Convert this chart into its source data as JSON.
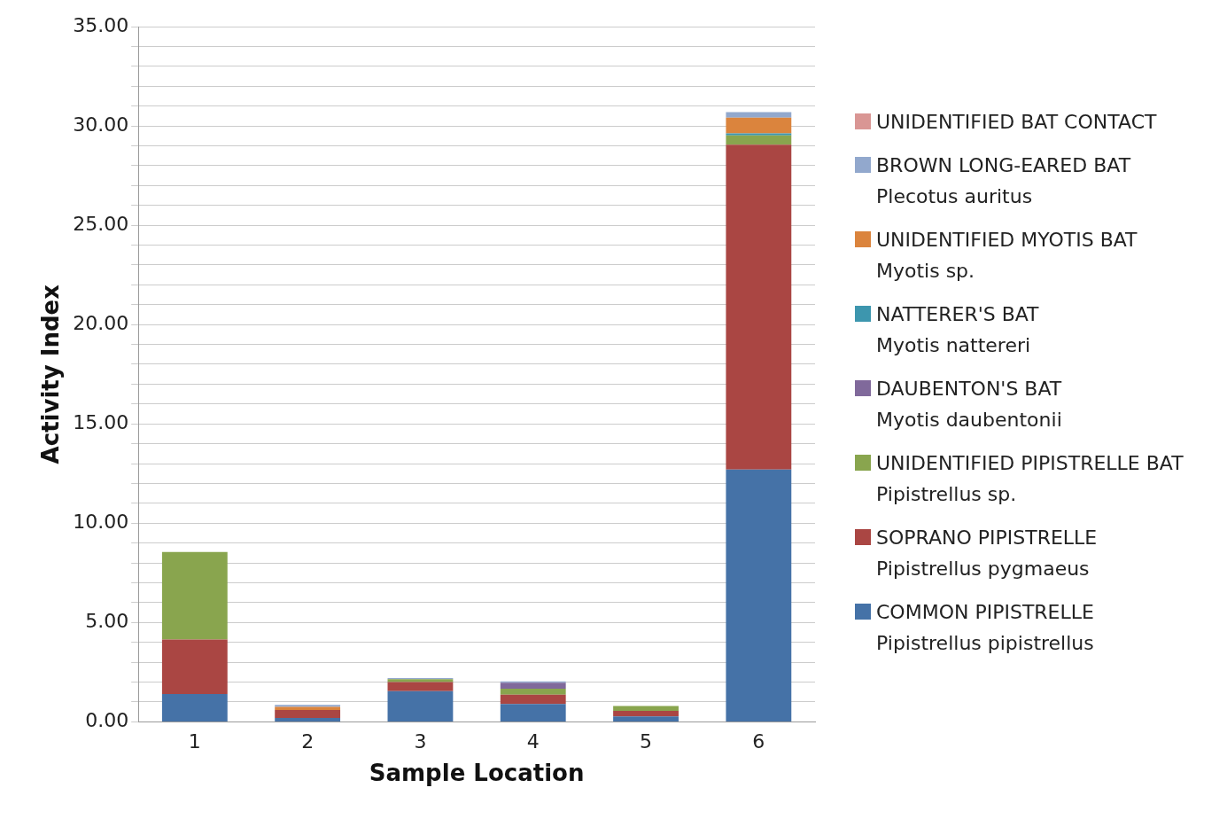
{
  "chart_data": {
    "type": "bar",
    "stacked": true,
    "xlabel": "Sample Location",
    "ylabel": "Activity Index",
    "categories": [
      "1",
      "2",
      "3",
      "4",
      "5",
      "6"
    ],
    "series": [
      {
        "name": "COMMON PIPISTRELLE\nPipistrellus pipistrellus",
        "color": "#4572a7",
        "values": [
          1.4,
          0.2,
          1.55,
          0.9,
          0.28,
          12.7
        ]
      },
      {
        "name": "SOPRANO PIPISTRELLE\nPipistrellus pygmaeus",
        "color": "#aa4643",
        "values": [
          2.75,
          0.4,
          0.45,
          0.47,
          0.27,
          16.35
        ]
      },
      {
        "name": "UNIDENTIFIED PIPISTRELLE BAT\nPipistrellus sp.",
        "color": "#89a54e",
        "values": [
          4.4,
          0,
          0.15,
          0.3,
          0.25,
          0.47
        ]
      },
      {
        "name": "DAUBENTON'S BAT\nMyotis daubentonii",
        "color": "#80699b",
        "values": [
          0,
          0,
          0,
          0.3,
          0,
          0
        ]
      },
      {
        "name": "NATTERER'S BAT\nMyotis nattereri",
        "color": "#3d96ae",
        "values": [
          0,
          0,
          0,
          0,
          0,
          0.1
        ]
      },
      {
        "name": "UNIDENTIFIED MYOTIS BAT\nMyotis sp.",
        "color": "#db843d",
        "values": [
          0,
          0.15,
          0,
          0,
          0,
          0.8
        ]
      },
      {
        "name": "BROWN LONG-EARED BAT\nPlecotus auritus",
        "color": "#92a8cd",
        "values": [
          0,
          0.1,
          0.05,
          0.07,
          0,
          0.27
        ]
      },
      {
        "name": "UNIDENTIFIED BAT CONTACT",
        "color": "#d99694",
        "values": [
          0,
          0,
          0,
          0,
          0,
          0
        ]
      }
    ],
    "ylim": [
      0,
      35
    ],
    "yticks": [
      {
        "value": 0,
        "label": "0.00"
      },
      {
        "value": 1,
        "label": null
      },
      {
        "value": 2,
        "label": null
      },
      {
        "value": 3,
        "label": null
      },
      {
        "value": 4,
        "label": null
      },
      {
        "value": 5,
        "label": "5.00"
      },
      {
        "value": 6,
        "label": null
      },
      {
        "value": 7,
        "label": null
      },
      {
        "value": 8,
        "label": null
      },
      {
        "value": 9,
        "label": null
      },
      {
        "value": 10,
        "label": "10.00"
      },
      {
        "value": 11,
        "label": null
      },
      {
        "value": 12,
        "label": null
      },
      {
        "value": 13,
        "label": null
      },
      {
        "value": 14,
        "label": null
      },
      {
        "value": 15,
        "label": "15.00"
      },
      {
        "value": 16,
        "label": null
      },
      {
        "value": 17,
        "label": null
      },
      {
        "value": 18,
        "label": null
      },
      {
        "value": 19,
        "label": null
      },
      {
        "value": 20,
        "label": "20.00"
      },
      {
        "value": 21,
        "label": null
      },
      {
        "value": 22,
        "label": null
      },
      {
        "value": 23,
        "label": null
      },
      {
        "value": 24,
        "label": null
      },
      {
        "value": 25,
        "label": "25.00"
      },
      {
        "value": 26,
        "label": null
      },
      {
        "value": 27,
        "label": null
      },
      {
        "value": 28,
        "label": null
      },
      {
        "value": 29,
        "label": null
      },
      {
        "value": 30,
        "label": "30.00"
      },
      {
        "value": 31,
        "label": null
      },
      {
        "value": 32,
        "label": null
      },
      {
        "value": 33,
        "label": null
      },
      {
        "value": 34,
        "label": null
      },
      {
        "value": 35,
        "label": "35.00"
      }
    ],
    "grid": "y",
    "legend": "right"
  }
}
